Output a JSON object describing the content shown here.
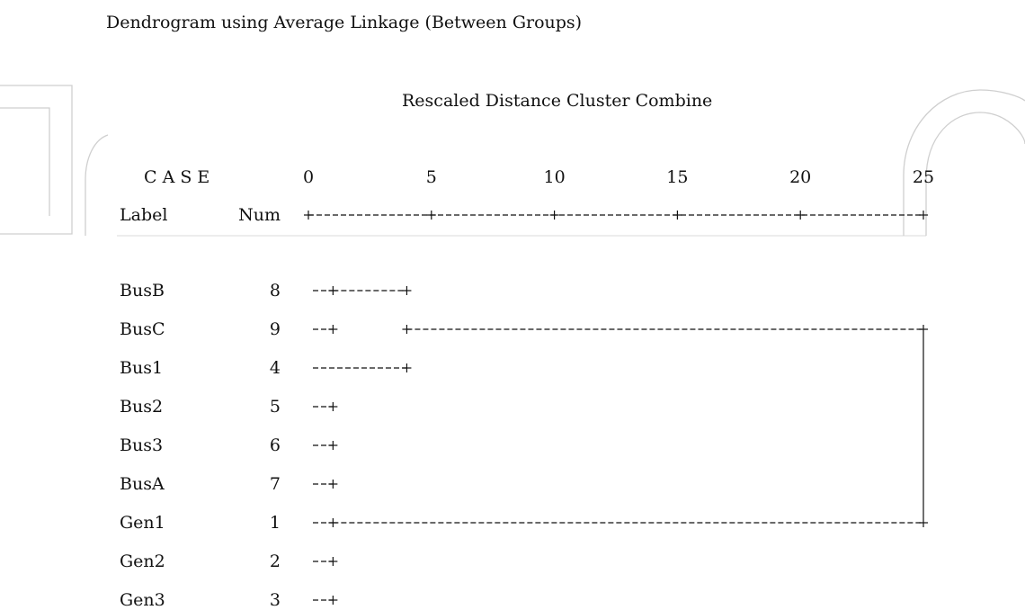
{
  "title": "Dendrogram using Average Linkage (Between Groups)",
  "subtitle": "Rescaled Distance Cluster Combine",
  "header": {
    "case_label": "C A S E",
    "label_col": "Label",
    "num_col": "Num"
  },
  "axis": {
    "ticks": [
      0,
      5,
      10,
      15,
      20,
      25
    ],
    "range": [
      0,
      25
    ]
  },
  "cases": [
    {
      "label": "BusB",
      "num": "8"
    },
    {
      "label": "BusC",
      "num": "9"
    },
    {
      "label": "Bus1",
      "num": "4"
    },
    {
      "label": "Bus2",
      "num": "5"
    },
    {
      "label": "Bus3",
      "num": "6"
    },
    {
      "label": "BusA",
      "num": "7"
    },
    {
      "label": "Gen1",
      "num": "1"
    },
    {
      "label": "Gen2",
      "num": "2"
    },
    {
      "label": "Gen3",
      "num": "3"
    }
  ],
  "merges": [
    {
      "from_rows": [
        0,
        1
      ],
      "distance": 1
    },
    {
      "from_rows": [
        0,
        2
      ],
      "distance": 4
    },
    {
      "from_rows": [
        1,
        6
      ],
      "distance": 25
    }
  ],
  "colors": {
    "ink": "#111111",
    "watermark": "#cfcfcf"
  }
}
